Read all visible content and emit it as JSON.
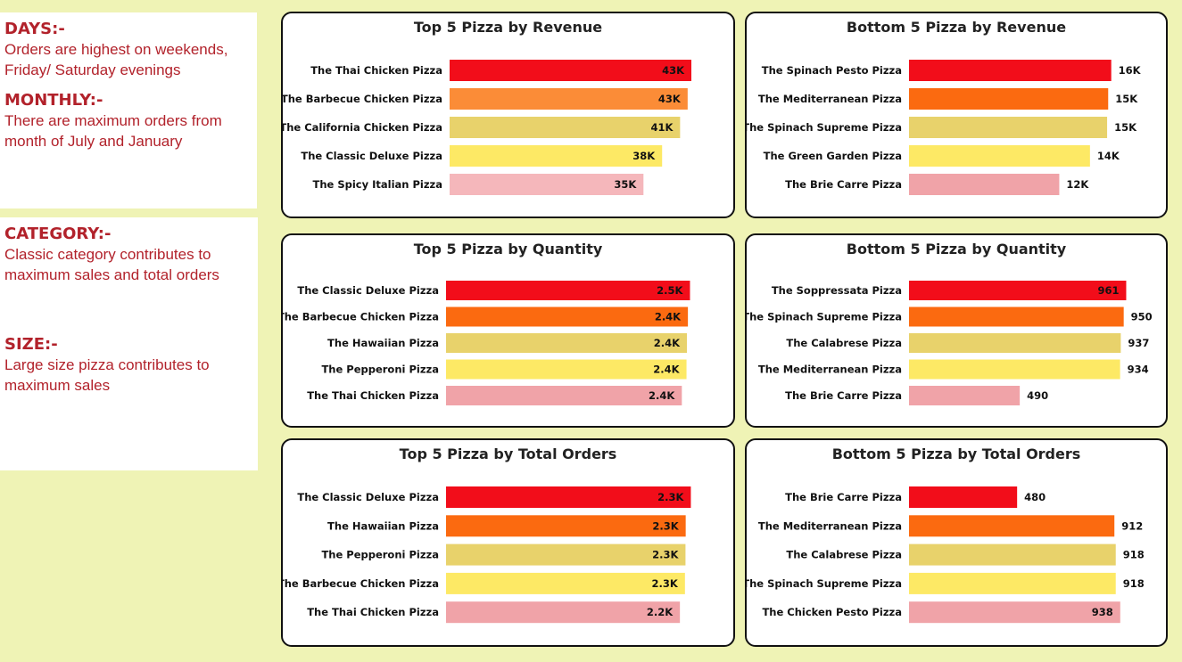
{
  "notes": {
    "days_head": "DAYS:-",
    "days_body": "Orders are highest on weekends, Friday/ Saturday evenings",
    "monthly_head": "MONTHLY:-",
    "monthly_body": "There are maximum orders from month of July and January",
    "category_head": "CATEGORY:-",
    "category_body": "Classic category contributes to maximum sales and total orders",
    "size_head": "SIZE:-",
    "size_body": "Large size pizza contributes to maximum sales"
  },
  "colors": [
    "#f20d1a",
    "#fb6a10",
    "#e8d26b",
    "#fde965",
    "#f0a3a8"
  ],
  "chart_data": [
    {
      "id": "top-revenue",
      "type": "bar",
      "orientation": "horizontal",
      "title": "Top 5 Pizza by Revenue",
      "categories": [
        "The Thai Chicken Pizza",
        "The Barbecue Chicken Pizza",
        "The California Chicken Pizza",
        "The Classic Deluxe Pizza",
        "The Spicy Italian Pizza"
      ],
      "values": [
        43434,
        42768,
        41410,
        38180,
        34831
      ],
      "value_labels": [
        "43K",
        "43K",
        "41K",
        "38K",
        "35K"
      ],
      "xlim": [
        0,
        46000
      ],
      "colors": [
        "#f20d1a",
        "#fb8c37",
        "#e8d26b",
        "#fde965",
        "#f5b7bb"
      ]
    },
    {
      "id": "bottom-revenue",
      "type": "bar",
      "orientation": "horizontal",
      "title": "Bottom 5 Pizza by Revenue",
      "categories": [
        "The Spinach Pesto Pizza",
        "The Mediterranean Pizza",
        "The Spinach Supreme Pizza",
        "The Green Garden Pizza",
        "The Brie Carre Pizza"
      ],
      "values": [
        15596,
        15360,
        15278,
        13956,
        11588
      ],
      "value_labels": [
        "16K",
        "15K",
        "15K",
        "14K",
        "12K"
      ],
      "xlim": [
        0,
        17200
      ],
      "colors": [
        "#f20d1a",
        "#fb6a10",
        "#e8d26b",
        "#fde965",
        "#f0a3a8"
      ]
    },
    {
      "id": "top-quantity",
      "type": "bar",
      "orientation": "horizontal",
      "title": "Top 5 Pizza by Quantity",
      "categories": [
        "The Classic Deluxe Pizza",
        "The Barbecue Chicken Pizza",
        "The Hawaiian Pizza",
        "The Pepperoni Pizza",
        "The Thai Chicken Pizza"
      ],
      "values": [
        2453,
        2432,
        2422,
        2418,
        2371
      ],
      "value_labels": [
        "2.5K",
        "2.4K",
        "2.4K",
        "2.4K",
        "2.4K"
      ],
      "xlim": [
        0,
        2700
      ],
      "colors": [
        "#f20d1a",
        "#fb6a10",
        "#e8d26b",
        "#fde965",
        "#f0a3a8"
      ]
    },
    {
      "id": "bottom-quantity",
      "type": "bar",
      "orientation": "horizontal",
      "title": "Bottom 5 Pizza by Quantity",
      "categories": [
        "The Soppressata Pizza",
        "The Spinach Supreme Pizza",
        "The Calabrese Pizza",
        "The Mediterranean Pizza",
        "The Brie Carre Pizza"
      ],
      "values": [
        961,
        950,
        937,
        934,
        490
      ],
      "value_labels": [
        "961",
        "950",
        "937",
        "934",
        "490"
      ],
      "xlim": [
        0,
        1050
      ],
      "colors": [
        "#f20d1a",
        "#fb6a10",
        "#e8d26b",
        "#fde965",
        "#f0a3a8"
      ]
    },
    {
      "id": "top-orders",
      "type": "bar",
      "orientation": "horizontal",
      "title": "Top 5 Pizza by Total Orders",
      "categories": [
        "The Classic Deluxe Pizza",
        "The Hawaiian Pizza",
        "The Pepperoni Pizza",
        "The Barbecue Chicken Pizza",
        "The Thai Chicken Pizza"
      ],
      "values": [
        2329,
        2280,
        2278,
        2273,
        2225
      ],
      "value_labels": [
        "2.3K",
        "2.3K",
        "2.3K",
        "2.3K",
        "2.2K"
      ],
      "xlim": [
        0,
        2580
      ],
      "colors": [
        "#f20d1a",
        "#fb6a10",
        "#e8d26b",
        "#fde965",
        "#f0a3a8"
      ]
    },
    {
      "id": "bottom-orders",
      "type": "bar",
      "orientation": "horizontal",
      "title": "Bottom 5 Pizza by Total Orders",
      "categories": [
        "The Brie Carre Pizza",
        "The Mediterranean Pizza",
        "The Calabrese Pizza",
        "The Spinach Supreme Pizza",
        "The Chicken Pesto Pizza"
      ],
      "values": [
        480,
        912,
        918,
        918,
        938
      ],
      "value_labels": [
        "480",
        "912",
        "918",
        "918",
        "938"
      ],
      "xlim": [
        0,
        1030
      ],
      "colors": [
        "#f20d1a",
        "#fb6a10",
        "#e8d26b",
        "#fde965",
        "#f0a3a8"
      ]
    }
  ]
}
